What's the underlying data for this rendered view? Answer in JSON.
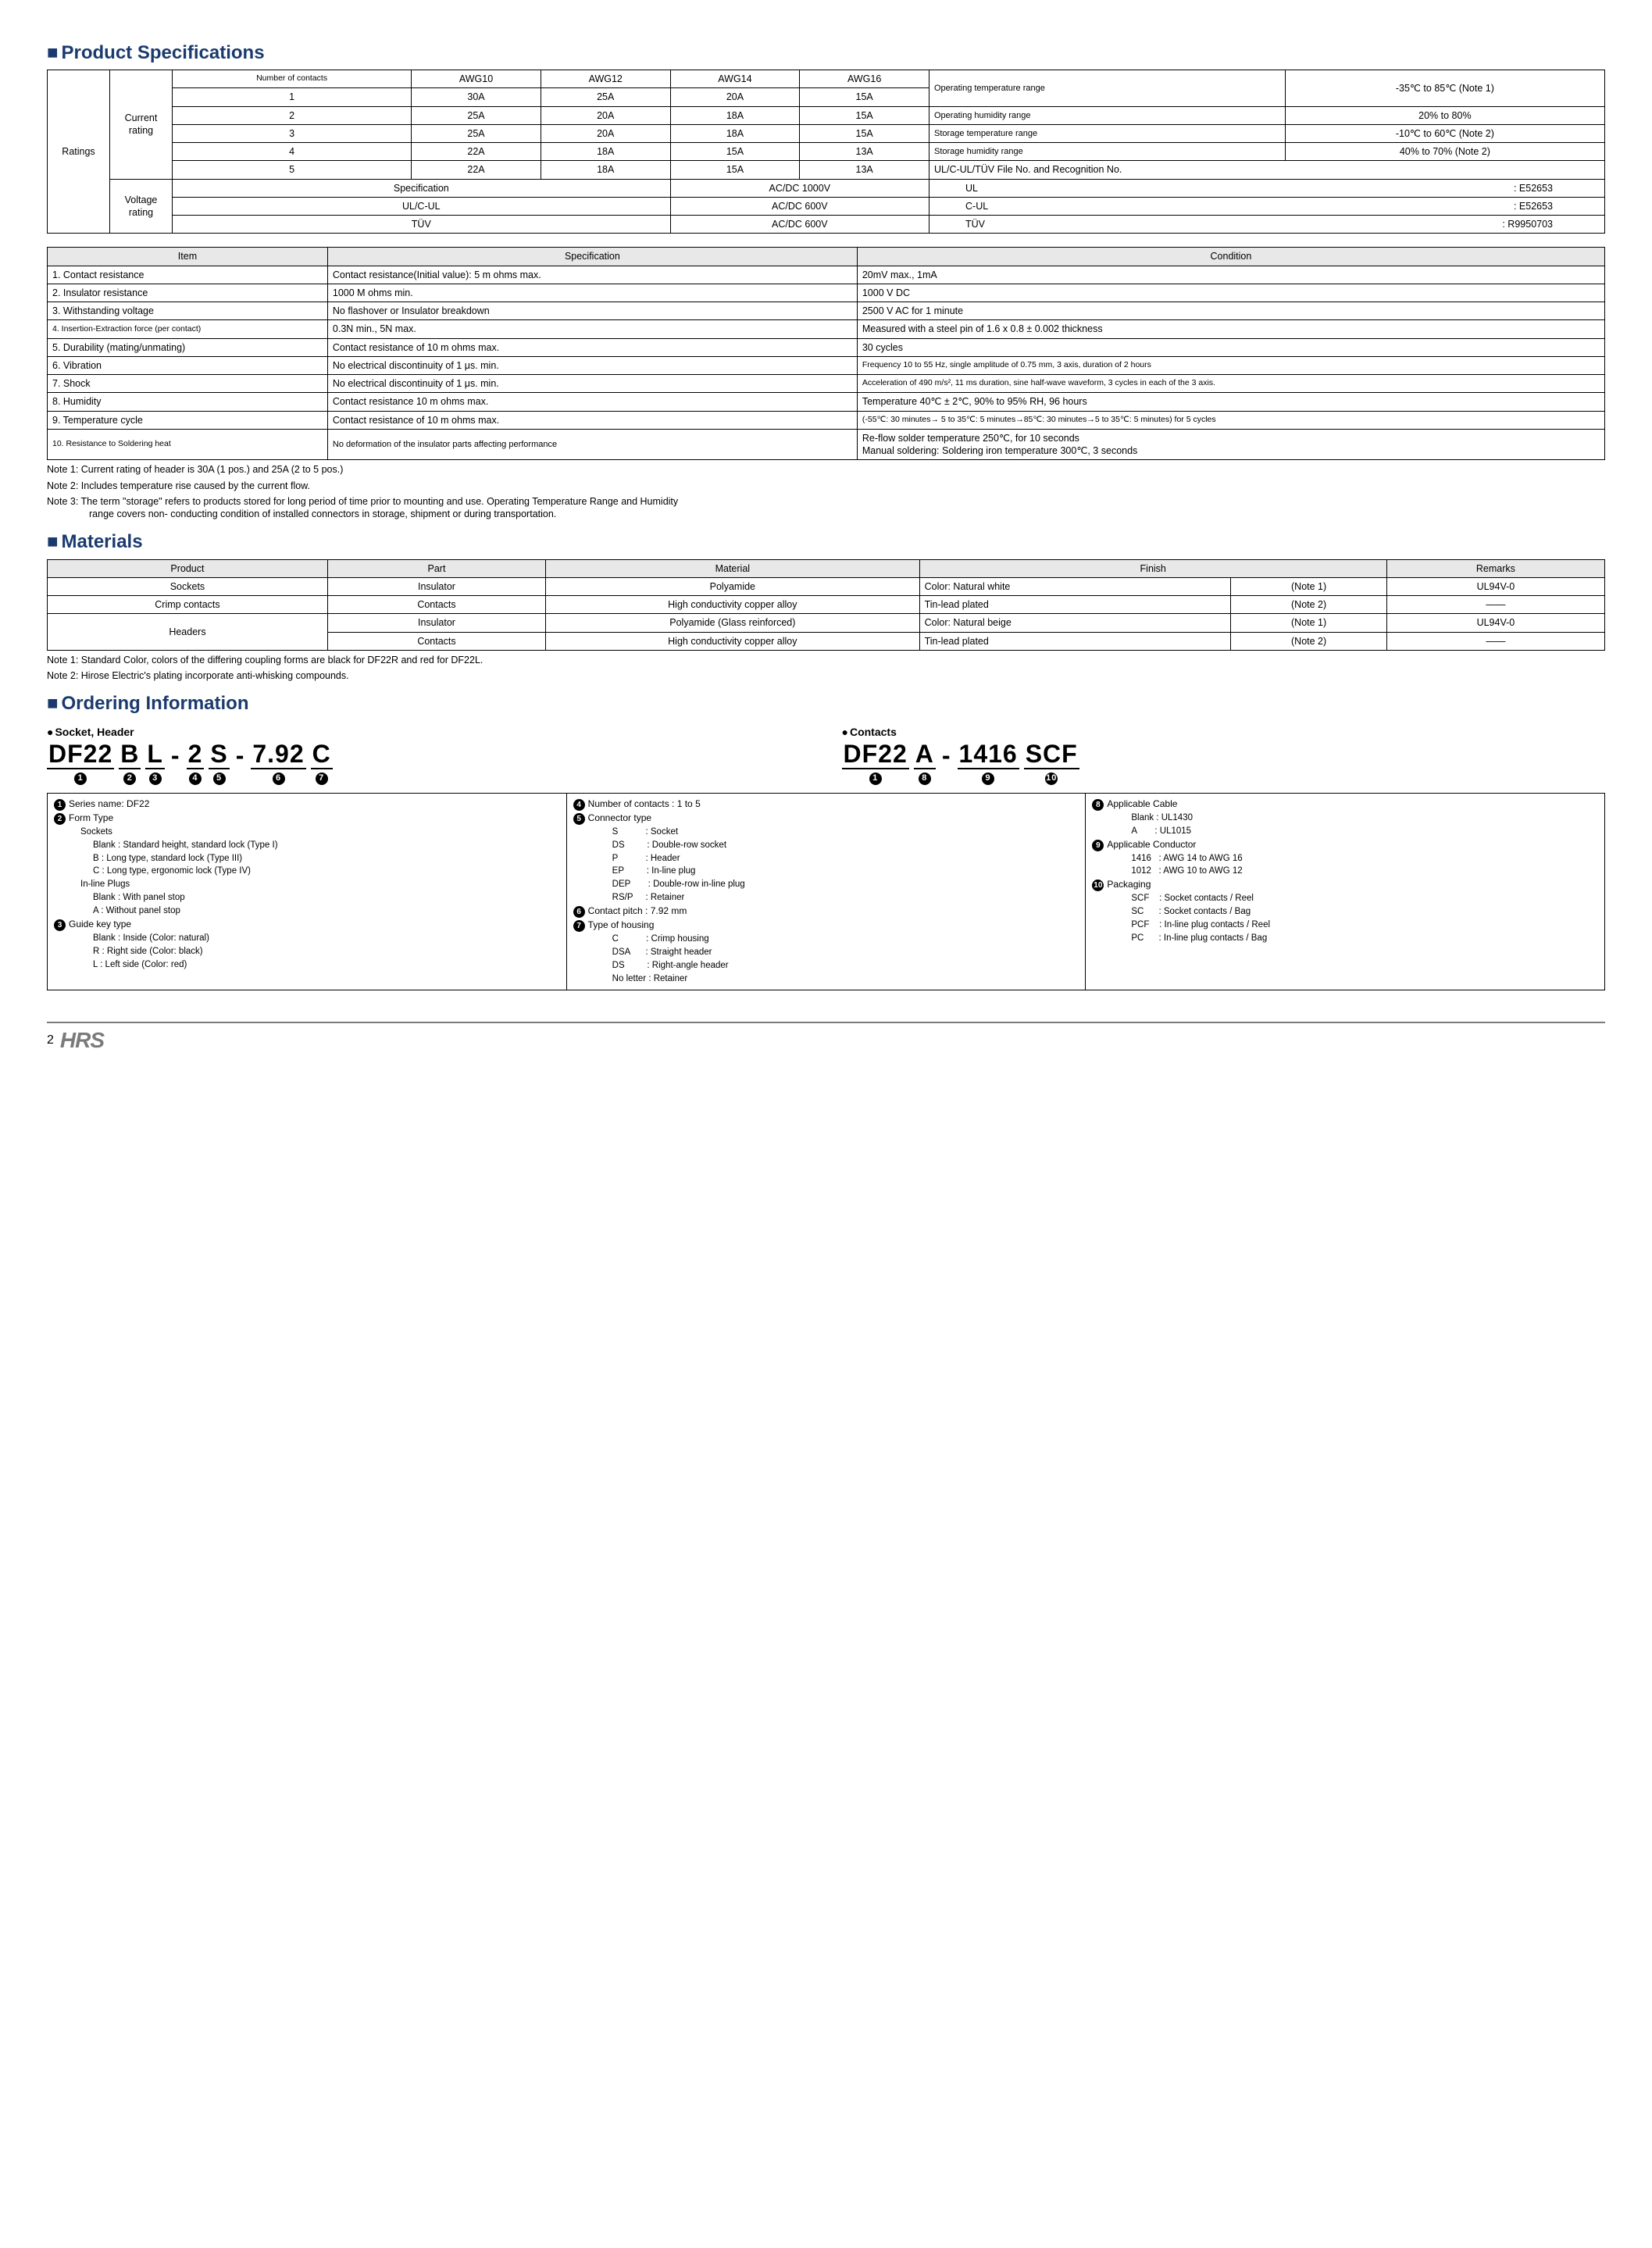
{
  "sections": {
    "spec_title": "Product Specifications",
    "materials_title": "Materials",
    "ordering_title": "Ordering Information"
  },
  "ratings_label": "Ratings",
  "current_label": "Current rating",
  "voltage_label": "Voltage rating",
  "current_table": {
    "header": [
      "Number of contacts",
      "AWG10",
      "AWG12",
      "AWG14",
      "AWG16"
    ],
    "rows": [
      [
        "1",
        "30A",
        "25A",
        "20A",
        "15A"
      ],
      [
        "2",
        "25A",
        "20A",
        "18A",
        "15A"
      ],
      [
        "3",
        "25A",
        "20A",
        "18A",
        "15A"
      ],
      [
        "4",
        "22A",
        "18A",
        "15A",
        "13A"
      ],
      [
        "5",
        "22A",
        "18A",
        "15A",
        "13A"
      ]
    ]
  },
  "env_table": [
    [
      "Operating temperature range",
      "-35℃ to 85℃ (Note 1)"
    ],
    [
      "Operating humidity range",
      "20% to 80%"
    ],
    [
      "Storage temperature range",
      "-10℃ to 60℃ (Note 2)"
    ],
    [
      "Storage humidity range",
      "40% to 70% (Note 2)"
    ]
  ],
  "cert_label": "UL/C-UL/TÜV    File No. and Recognition No.",
  "voltage_rows": [
    [
      "Specification",
      "AC/DC    1000V",
      "UL",
      ": E52653"
    ],
    [
      "UL/C-UL",
      "AC/DC     600V",
      "C-UL",
      ": E52653"
    ],
    [
      "TÜV",
      "AC/DC     600V",
      "TÜV",
      ": R9950703"
    ]
  ],
  "spec_table": {
    "header": [
      "Item",
      "Specification",
      "Condition"
    ],
    "rows": [
      [
        "1. Contact resistance",
        "Contact resistance(Initial value): 5 m ohms max.",
        "20mV max., 1mA"
      ],
      [
        "2. Insulator resistance",
        "1000 M ohms min.",
        "1000 V DC"
      ],
      [
        "3. Withstanding voltage",
        "No flashover or Insulator breakdown",
        "2500 V AC for 1 minute"
      ],
      [
        "4. Insertion-Extraction force (per contact)",
        "0.3N min., 5N max.",
        "Measured with a steel pin of 1.6 x 0.8 ± 0.002 thickness"
      ],
      [
        "5. Durability (mating/unmating)",
        "Contact resistance of 10 m ohms max.",
        "30 cycles"
      ],
      [
        "6. Vibration",
        "No electrical discontinuity of 1 μs. min.",
        "Frequency 10 to 55 Hz, single amplitude of 0.75 mm, 3 axis, duration of 2 hours"
      ],
      [
        "7. Shock",
        "No electrical discontinuity of 1 μs. min.",
        "Acceleration of 490 m/s², 11 ms duration, sine half-wave waveform, 3 cycles in each of the 3 axis."
      ],
      [
        "8. Humidity",
        "Contact resistance 10 m ohms max.",
        "Temperature 40℃ ± 2℃, 90% to 95% RH, 96 hours"
      ],
      [
        "9. Temperature cycle",
        "Contact resistance of 10 m ohms max.",
        "(-55℃: 30 minutes→ 5 to 35℃: 5 minutes→85℃: 30 minutes→5 to 35℃: 5 minutes) for 5 cycles"
      ],
      [
        "10. Resistance to Soldering heat",
        "No deformation of the insulator parts affecting performance",
        "Re-flow solder temperature 250℃, for 10 seconds\nManual soldering: Soldering iron temperature 300℃, 3 seconds"
      ]
    ]
  },
  "spec_notes": [
    "Note 1: Current rating of header is 30A (1 pos.) and 25A (2 to 5 pos.)",
    "Note 2: Includes temperature rise caused by the current flow.",
    "Note 3: The term \"storage\" refers to products stored for long period of time prior to mounting and use. Operating Temperature Range and Humidity range covers non- conducting condition of installed connectors in storage, shipment or during transportation."
  ],
  "materials_table": {
    "header": [
      "Product",
      "Part",
      "Material",
      "Finish",
      "",
      "Remarks"
    ],
    "rows": [
      [
        "Sockets",
        "Insulator",
        "Polyamide",
        "Color: Natural white",
        "(Note 1)",
        "UL94V-0"
      ],
      [
        "Crimp contacts",
        "Contacts",
        "High conductivity copper alloy",
        "Tin-lead plated",
        "(Note 2)",
        "――"
      ],
      [
        "Headers",
        "Insulator",
        "Polyamide (Glass reinforced)",
        "Color: Natural beige",
        "(Note 1)",
        "UL94V-0"
      ],
      [
        "",
        "Contacts",
        "High conductivity copper alloy",
        "Tin-lead plated",
        "(Note 2)",
        "――"
      ]
    ]
  },
  "materials_notes": [
    "Note 1: Standard Color, colors of the differing coupling forms are black for DF22R and red for DF22L.",
    "Note 2: Hirose Electric's plating incorporate anti-whisking compounds."
  ],
  "ordering": {
    "socket_label": "Socket, Header",
    "contacts_label": "Contacts",
    "pn1": [
      {
        "t": "DF22",
        "n": "1"
      },
      {
        "t": "B",
        "n": "2"
      },
      {
        "t": "L",
        "n": "3"
      },
      {
        "t": "-",
        "n": ""
      },
      {
        "t": "2",
        "n": "4"
      },
      {
        "t": "S",
        "n": "5"
      },
      {
        "t": "-",
        "n": ""
      },
      {
        "t": "7.92",
        "n": "6"
      },
      {
        "t": "C",
        "n": "7"
      }
    ],
    "pn2": [
      {
        "t": "DF22",
        "n": "1"
      },
      {
        "t": "A",
        "n": "8"
      },
      {
        "t": "-",
        "n": ""
      },
      {
        "t": "1416",
        "n": "9"
      },
      {
        "t": "SCF",
        "n": "10"
      }
    ],
    "legend1": [
      {
        "n": "1",
        "t": "Series name: DF22"
      },
      {
        "n": "2",
        "t": "Form Type"
      },
      {
        "sub": "Sockets"
      },
      {
        "sub2": "Blank : Standard height, standard lock (Type I)"
      },
      {
        "sub2": "B : Long type, standard lock (Type III)"
      },
      {
        "sub2": "C : Long type, ergonomic lock (Type IV)"
      },
      {
        "sub": "In-line Plugs"
      },
      {
        "sub2": "Blank : With panel stop"
      },
      {
        "sub2": "A : Without panel stop"
      },
      {
        "n": "3",
        "t": "Guide key type"
      },
      {
        "sub2": "Blank : Inside (Color: natural)"
      },
      {
        "sub2": "R : Right side (Color: black)"
      },
      {
        "sub2": "L : Left side (Color: red)"
      }
    ],
    "legend2": [
      {
        "n": "4",
        "t": "Number of contacts : 1 to 5"
      },
      {
        "n": "5",
        "t": "Connector type"
      },
      {
        "sub2": "S           : Socket"
      },
      {
        "sub2": "DS         : Double-row socket"
      },
      {
        "sub2": "P           : Header"
      },
      {
        "sub2": "EP         : In-line plug"
      },
      {
        "sub2": "DEP       : Double-row in-line plug"
      },
      {
        "sub2": "RS/P     : Retainer"
      },
      {
        "n": "6",
        "t": "Contact pitch         : 7.92 mm"
      },
      {
        "n": "7",
        "t": "Type of housing"
      },
      {
        "sub2": "C           : Crimp housing"
      },
      {
        "sub2": "DSA      : Straight header"
      },
      {
        "sub2": "DS         : Right-angle header"
      },
      {
        "sub2": "No letter : Retainer"
      }
    ],
    "legend3": [
      {
        "n": "8",
        "t": "Applicable Cable"
      },
      {
        "sub2": "Blank : UL1430"
      },
      {
        "sub2": "A       : UL1015"
      },
      {
        "n": "9",
        "t": "Applicable Conductor"
      },
      {
        "sub2": "1416   : AWG 14 to AWG 16"
      },
      {
        "sub2": "1012   : AWG 10 to AWG 12"
      },
      {
        "n": "10",
        "t": "Packaging"
      },
      {
        "sub2": "SCF    : Socket contacts / Reel"
      },
      {
        "sub2": "SC      : Socket contacts / Bag"
      },
      {
        "sub2": "PCF    : In-line plug contacts / Reel"
      },
      {
        "sub2": "PC      : In-line plug contacts / Bag"
      }
    ]
  },
  "page": "2",
  "logo": "HRS"
}
